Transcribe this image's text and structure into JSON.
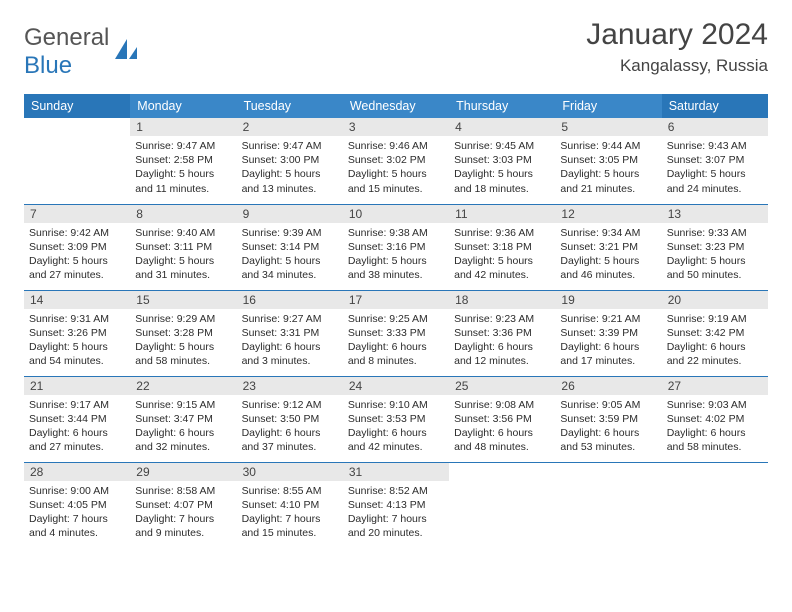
{
  "logo": {
    "textA": "General",
    "textB": "Blue"
  },
  "title": "January 2024",
  "location": "Kangalassy, Russia",
  "colors": {
    "header_bg": "#3a87c8",
    "header_weekend_bg": "#2976b8",
    "header_fg": "#ffffff",
    "daynum_bg": "#e8e8e8",
    "rule": "#2976b8"
  },
  "weekdays": [
    "Sunday",
    "Monday",
    "Tuesday",
    "Wednesday",
    "Thursday",
    "Friday",
    "Saturday"
  ],
  "cells": [
    {
      "n": "",
      "r": "",
      "s": "",
      "d": ""
    },
    {
      "n": "1",
      "r": "9:47 AM",
      "s": "2:58 PM",
      "d": "5 hours and 11 minutes."
    },
    {
      "n": "2",
      "r": "9:47 AM",
      "s": "3:00 PM",
      "d": "5 hours and 13 minutes."
    },
    {
      "n": "3",
      "r": "9:46 AM",
      "s": "3:02 PM",
      "d": "5 hours and 15 minutes."
    },
    {
      "n": "4",
      "r": "9:45 AM",
      "s": "3:03 PM",
      "d": "5 hours and 18 minutes."
    },
    {
      "n": "5",
      "r": "9:44 AM",
      "s": "3:05 PM",
      "d": "5 hours and 21 minutes."
    },
    {
      "n": "6",
      "r": "9:43 AM",
      "s": "3:07 PM",
      "d": "5 hours and 24 minutes."
    },
    {
      "n": "7",
      "r": "9:42 AM",
      "s": "3:09 PM",
      "d": "5 hours and 27 minutes."
    },
    {
      "n": "8",
      "r": "9:40 AM",
      "s": "3:11 PM",
      "d": "5 hours and 31 minutes."
    },
    {
      "n": "9",
      "r": "9:39 AM",
      "s": "3:14 PM",
      "d": "5 hours and 34 minutes."
    },
    {
      "n": "10",
      "r": "9:38 AM",
      "s": "3:16 PM",
      "d": "5 hours and 38 minutes."
    },
    {
      "n": "11",
      "r": "9:36 AM",
      "s": "3:18 PM",
      "d": "5 hours and 42 minutes."
    },
    {
      "n": "12",
      "r": "9:34 AM",
      "s": "3:21 PM",
      "d": "5 hours and 46 minutes."
    },
    {
      "n": "13",
      "r": "9:33 AM",
      "s": "3:23 PM",
      "d": "5 hours and 50 minutes."
    },
    {
      "n": "14",
      "r": "9:31 AM",
      "s": "3:26 PM",
      "d": "5 hours and 54 minutes."
    },
    {
      "n": "15",
      "r": "9:29 AM",
      "s": "3:28 PM",
      "d": "5 hours and 58 minutes."
    },
    {
      "n": "16",
      "r": "9:27 AM",
      "s": "3:31 PM",
      "d": "6 hours and 3 minutes."
    },
    {
      "n": "17",
      "r": "9:25 AM",
      "s": "3:33 PM",
      "d": "6 hours and 8 minutes."
    },
    {
      "n": "18",
      "r": "9:23 AM",
      "s": "3:36 PM",
      "d": "6 hours and 12 minutes."
    },
    {
      "n": "19",
      "r": "9:21 AM",
      "s": "3:39 PM",
      "d": "6 hours and 17 minutes."
    },
    {
      "n": "20",
      "r": "9:19 AM",
      "s": "3:42 PM",
      "d": "6 hours and 22 minutes."
    },
    {
      "n": "21",
      "r": "9:17 AM",
      "s": "3:44 PM",
      "d": "6 hours and 27 minutes."
    },
    {
      "n": "22",
      "r": "9:15 AM",
      "s": "3:47 PM",
      "d": "6 hours and 32 minutes."
    },
    {
      "n": "23",
      "r": "9:12 AM",
      "s": "3:50 PM",
      "d": "6 hours and 37 minutes."
    },
    {
      "n": "24",
      "r": "9:10 AM",
      "s": "3:53 PM",
      "d": "6 hours and 42 minutes."
    },
    {
      "n": "25",
      "r": "9:08 AM",
      "s": "3:56 PM",
      "d": "6 hours and 48 minutes."
    },
    {
      "n": "26",
      "r": "9:05 AM",
      "s": "3:59 PM",
      "d": "6 hours and 53 minutes."
    },
    {
      "n": "27",
      "r": "9:03 AM",
      "s": "4:02 PM",
      "d": "6 hours and 58 minutes."
    },
    {
      "n": "28",
      "r": "9:00 AM",
      "s": "4:05 PM",
      "d": "7 hours and 4 minutes."
    },
    {
      "n": "29",
      "r": "8:58 AM",
      "s": "4:07 PM",
      "d": "7 hours and 9 minutes."
    },
    {
      "n": "30",
      "r": "8:55 AM",
      "s": "4:10 PM",
      "d": "7 hours and 15 minutes."
    },
    {
      "n": "31",
      "r": "8:52 AM",
      "s": "4:13 PM",
      "d": "7 hours and 20 minutes."
    },
    {
      "n": "",
      "r": "",
      "s": "",
      "d": ""
    },
    {
      "n": "",
      "r": "",
      "s": "",
      "d": ""
    },
    {
      "n": "",
      "r": "",
      "s": "",
      "d": ""
    }
  ],
  "labels": {
    "sunrise": "Sunrise: ",
    "sunset": "Sunset: ",
    "daylight": "Daylight: "
  }
}
